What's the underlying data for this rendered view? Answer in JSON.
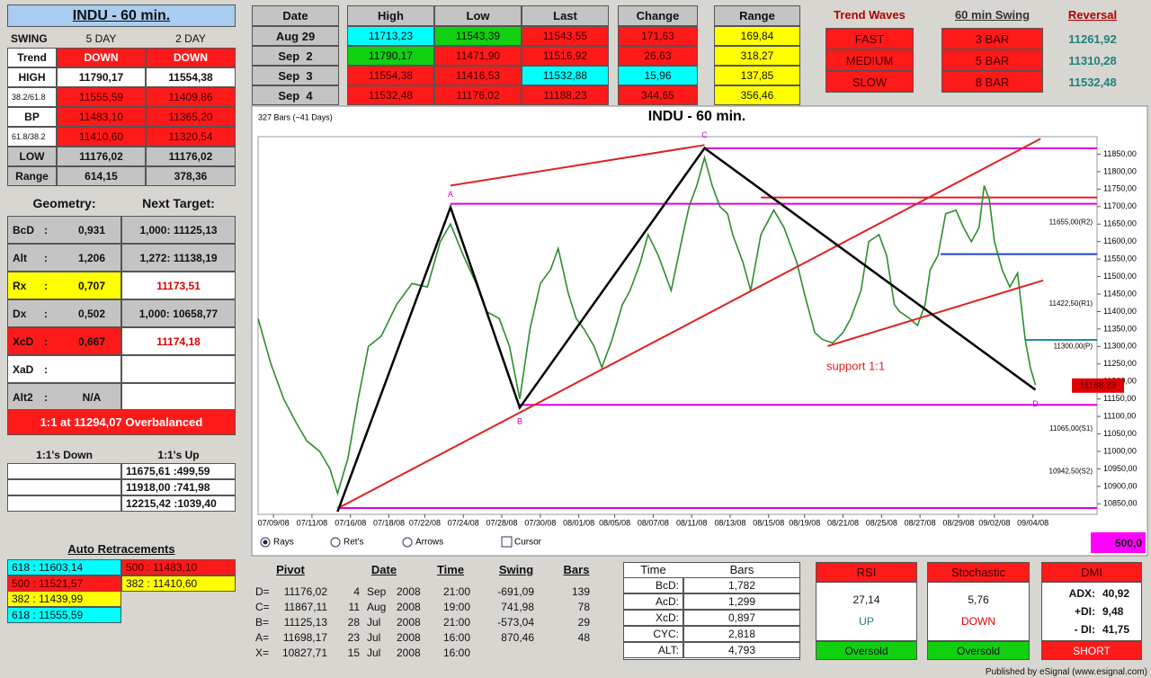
{
  "title": "INDU - 60 min.",
  "swing": {
    "headers": [
      "SWING",
      "5 DAY",
      "2 DAY"
    ],
    "rows": [
      [
        "Trend",
        "DOWN",
        "DOWN"
      ],
      [
        "HIGH",
        "11790,17",
        "11554,38"
      ],
      [
        "38.2/61.8",
        "11555,59",
        "11409,86"
      ],
      [
        "BP",
        "11483,10",
        "11365,20"
      ],
      [
        "61.8/38.2",
        "11410,60",
        "11320,54"
      ],
      [
        "LOW",
        "11176,02",
        "11176,02"
      ],
      [
        "Range",
        "614,15",
        "378,36"
      ]
    ]
  },
  "geometry": {
    "headers": [
      "Geometry:",
      "Next Target:"
    ],
    "rows": [
      [
        "BcD",
        ":",
        "0,931",
        "1,000: 11125,13"
      ],
      [
        "Alt",
        ":",
        "1,206",
        "1,272: 11138,19"
      ],
      [
        "Rx",
        ":",
        "0,707",
        "11173,51"
      ],
      [
        "Dx",
        ":",
        "0,502",
        "1,000: 10658,77"
      ],
      [
        "XcD",
        ":",
        "0,667",
        "11174,18"
      ],
      [
        "XaD",
        ":",
        null,
        null
      ],
      [
        "Alt2",
        ":",
        "N/A",
        null
      ]
    ]
  },
  "overbalanced": "1:1 at 11294,07 Overbalanced",
  "ones": {
    "headers": [
      "1:1's Down",
      "1:1's Up"
    ],
    "rows": [
      [
        null,
        "11675,61 :499,59"
      ],
      [
        null,
        "11918,00 :741,98"
      ],
      [
        null,
        "12215,42 :1039,40"
      ]
    ]
  },
  "auto_retracements": {
    "title": "Auto Retracements",
    "rows": [
      [
        "618 : 11603,14",
        "500 : 11483,10"
      ],
      [
        "500 : 11521,57",
        "382 : 11410,60"
      ],
      [
        "382 : 11439,99",
        null
      ],
      [
        "618 : 11555,59",
        null
      ]
    ]
  },
  "quotes": {
    "headers": [
      "Date",
      "High",
      "Low",
      "Last",
      "Change",
      "Range"
    ],
    "rows": [
      [
        "Aug 29",
        "11713,23",
        "11543,39",
        "11543,55",
        "171,63",
        "169,84"
      ],
      [
        "Sep  2",
        "11790,17",
        "11471,90",
        "11516,92",
        "26,63",
        "318,27"
      ],
      [
        "Sep  3",
        "11554,38",
        "11416,53",
        "11532,88",
        "15,96",
        "137,85"
      ],
      [
        "Sep  4",
        "11532,48",
        "11176,02",
        "11188,23",
        "344,65",
        "356,46"
      ]
    ]
  },
  "trend_waves": {
    "title": "Trend Waves",
    "items": [
      "FAST",
      "MEDIUM",
      "SLOW"
    ]
  },
  "swing_60": {
    "title": "60 min Swing",
    "items": [
      "3 BAR",
      "5 BAR",
      "8 BAR"
    ]
  },
  "reversal": {
    "title": "Reversal",
    "items": [
      "11261,92",
      "11310,28",
      "11532,48"
    ]
  },
  "chart_data": {
    "type": "line",
    "title": "INDU - 60 min.",
    "subtitle": "327 Bars (~41 Days)",
    "color": "#2e8b2e",
    "x": [
      0,
      5,
      10,
      15,
      19,
      24,
      28,
      31,
      35,
      39,
      43,
      48,
      54,
      60,
      66,
      71,
      75,
      80,
      85,
      89,
      94,
      98,
      102,
      106,
      110,
      114,
      117,
      121,
      124,
      127,
      131,
      134,
      138,
      142,
      145,
      149,
      152,
      156,
      161,
      165,
      168,
      171,
      174,
      177,
      180,
      183,
      185,
      189,
      192,
      196,
      201,
      205,
      210,
      213,
      217,
      220,
      224,
      228,
      231,
      235,
      238,
      242,
      245,
      248,
      250,
      254,
      257,
      260,
      262,
      265,
      268,
      272,
      275,
      278,
      281,
      283,
      285,
      287,
      290,
      293,
      296,
      299,
      301,
      303
    ],
    "values": [
      11380,
      11250,
      11150,
      11080,
      11030,
      11000,
      10950,
      10880,
      10980,
      11150,
      11300,
      11330,
      11420,
      11480,
      11470,
      11600,
      11650,
      11560,
      11480,
      11400,
      11380,
      11300,
      11150,
      11350,
      11480,
      11520,
      11580,
      11450,
      11380,
      11350,
      11300,
      11240,
      11320,
      11420,
      11460,
      11540,
      11620,
      11560,
      11460,
      11600,
      11700,
      11760,
      11840,
      11760,
      11700,
      11680,
      11620,
      11540,
      11460,
      11620,
      11690,
      11640,
      11540,
      11450,
      11340,
      11320,
      11310,
      11340,
      11380,
      11460,
      11600,
      11620,
      11560,
      11420,
      11400,
      11380,
      11360,
      11420,
      11520,
      11560,
      11680,
      11690,
      11640,
      11600,
      11640,
      11760,
      11720,
      11600,
      11520,
      11470,
      11510,
      11320,
      11240,
      11190
    ],
    "xlim": [
      0,
      327
    ],
    "ylim": [
      10820,
      11900
    ],
    "xticks": [
      {
        "value": 6,
        "label": "07/09/08"
      },
      {
        "value": 21,
        "label": "07/11/08"
      },
      {
        "value": 36,
        "label": "07/16/08"
      },
      {
        "value": 51,
        "label": "07/18/08"
      },
      {
        "value": 65,
        "label": "07/22/08"
      },
      {
        "value": 80,
        "label": "07/24/08"
      },
      {
        "value": 95,
        "label": "07/28/08"
      },
      {
        "value": 110,
        "label": "07/30/08"
      },
      {
        "value": 125,
        "label": "08/01/08"
      },
      {
        "value": 139,
        "label": "08/05/08"
      },
      {
        "value": 154,
        "label": "08/07/08"
      },
      {
        "value": 169,
        "label": "08/11/08"
      },
      {
        "value": 184,
        "label": "08/13/08"
      },
      {
        "value": 199,
        "label": "08/15/08"
      },
      {
        "value": 213,
        "label": "08/19/08"
      },
      {
        "value": 228,
        "label": "08/21/08"
      },
      {
        "value": 243,
        "label": "08/25/08"
      },
      {
        "value": 258,
        "label": "08/27/08"
      },
      {
        "value": 273,
        "label": "08/29/08"
      },
      {
        "value": 287,
        "label": "09/02/08"
      },
      {
        "value": 302,
        "label": "09/04/08"
      }
    ],
    "yticks": [
      {
        "value": 10850,
        "label": "10850,00"
      },
      {
        "value": 10900,
        "label": "10900,00"
      },
      {
        "value": 10950,
        "label": "10950,00"
      },
      {
        "value": 11000,
        "label": "11000,00"
      },
      {
        "value": 11050,
        "label": "11050,00"
      },
      {
        "value": 11100,
        "label": "11100,00"
      },
      {
        "value": 11150,
        "label": "11150,00"
      },
      {
        "value": 11200,
        "label": "11200,00"
      },
      {
        "value": 11250,
        "label": "11250,00"
      },
      {
        "value": 11300,
        "label": "11300,00"
      },
      {
        "value": 11350,
        "label": "11350,00"
      },
      {
        "value": 11400,
        "label": "11400,00"
      },
      {
        "value": 11450,
        "label": "11450,00"
      },
      {
        "value": 11500,
        "label": "11500,00"
      },
      {
        "value": 11550,
        "label": "11550,00"
      },
      {
        "value": 11600,
        "label": "11600,00"
      },
      {
        "value": 11650,
        "label": "11650,00"
      },
      {
        "value": 11700,
        "label": "11700,00"
      },
      {
        "value": 11750,
        "label": "11750,00"
      },
      {
        "value": 11800,
        "label": "11800,00"
      },
      {
        "value": 11850,
        "label": "11850,00"
      }
    ],
    "pattern": {
      "x": [
        31,
        75,
        102,
        174,
        303
      ],
      "values": [
        10827.71,
        11698.17,
        11125.13,
        11867.11,
        11176.02
      ],
      "labels": [
        null,
        "A",
        "B",
        "C",
        "D"
      ],
      "color": "#000000"
    },
    "trendlines": [
      {
        "x": [
          31,
          305
        ],
        "values": [
          10837,
          11894
        ],
        "color": "#e02020"
      },
      {
        "x": [
          75,
          174
        ],
        "values": [
          11760,
          11876
        ],
        "color": "#e02020"
      },
      {
        "x": [
          222,
          306
        ],
        "values": [
          11301,
          11489
        ],
        "color": "#e02020"
      }
    ],
    "levels": [
      {
        "value": 11867,
        "start": 174,
        "color": "#e000e0"
      },
      {
        "value": 11708,
        "start": 75,
        "color": "#e000e0"
      },
      {
        "value": 11133,
        "start": 102,
        "color": "#e000e0"
      },
      {
        "value": 10838,
        "start": 31,
        "color": "#e000e0"
      },
      {
        "value": 11726,
        "start": 196,
        "color": "#e02020"
      },
      {
        "value": 11564,
        "start": 266,
        "color": "#2040d0"
      },
      {
        "value": 11319,
        "start": 299,
        "color": "#209090"
      }
    ],
    "pivot_levels": [
      {
        "value": 11655,
        "label": "11655,00(R2)"
      },
      {
        "value": 11422.5,
        "label": "11422,50(R1)"
      },
      {
        "value": 11300,
        "label": "11300,00(P)"
      },
      {
        "value": 11065,
        "label": "11065,00(S1)"
      },
      {
        "value": 10942.5,
        "label": "10942,50(S2)"
      }
    ],
    "price_marker": {
      "value": 11188.23,
      "label": "11188,23"
    },
    "annotation": "support 1:1"
  },
  "controls": [
    "Rays",
    "Ret's",
    "Arrows",
    "Cursor"
  ],
  "box_value": "500,0",
  "pivots": {
    "headers": [
      "Pivot",
      "Date",
      "Time",
      "Swing",
      "Bars"
    ],
    "rows": [
      [
        "D=",
        "11176,02",
        "4",
        "Sep",
        "2008",
        "21:00",
        "-691,09",
        "139"
      ],
      [
        "C=",
        "11867,11",
        "11",
        "Aug",
        "2008",
        "19:00",
        "741,98",
        "78"
      ],
      [
        "B=",
        "11125,13",
        "28",
        "Jul",
        "2008",
        "21:00",
        "-573,04",
        "29"
      ],
      [
        "A=",
        "11698,17",
        "23",
        "Jul",
        "2008",
        "16:00",
        "870,46",
        "48"
      ],
      [
        "X=",
        "10827,71",
        "15",
        "Jul",
        "2008",
        "16:00",
        null,
        null
      ]
    ]
  },
  "time_bars": {
    "headers": [
      "Time",
      "Bars"
    ],
    "rows": [
      [
        "BcD:",
        "1,782"
      ],
      [
        "AcD:",
        "1,299"
      ],
      [
        "XcD:",
        "0,897"
      ],
      [
        "CYC:",
        "2,818"
      ],
      [
        "ALT:",
        "4,793"
      ]
    ]
  },
  "indicators": [
    {
      "title": "RSI",
      "value": "27,14",
      "signal": "UP",
      "status": "Oversold"
    },
    {
      "title": "Stochastic",
      "value": "5,76",
      "signal": "DOWN",
      "status": "Oversold"
    },
    {
      "title": "DMI",
      "rows": [
        [
          "ADX:",
          "40,92"
        ],
        [
          "+DI:",
          "9,48"
        ],
        [
          "- DI:",
          "41,75"
        ]
      ],
      "status": "SHORT"
    }
  ],
  "footer": "Published by eSignal (www.esignal.com)"
}
